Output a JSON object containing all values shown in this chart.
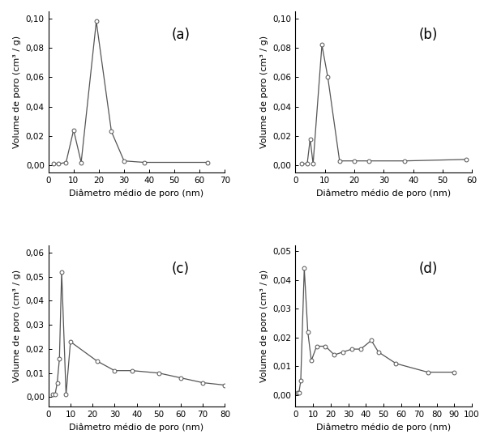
{
  "panel_a": {
    "label": "(a)",
    "x": [
      2,
      4,
      7,
      10,
      13,
      19,
      25,
      30,
      38,
      63
    ],
    "y": [
      0.001,
      0.001,
      0.002,
      0.024,
      0.002,
      0.098,
      0.023,
      0.003,
      0.002,
      0.002
    ],
    "xlim": [
      0,
      70
    ],
    "ylim": [
      -0.005,
      0.105
    ],
    "yticks": [
      0.0,
      0.02,
      0.04,
      0.06,
      0.08,
      0.1
    ],
    "xticks": [
      0,
      10,
      20,
      30,
      40,
      50,
      60,
      70
    ]
  },
  "panel_b": {
    "label": "(b)",
    "x": [
      2,
      4,
      5,
      6,
      9,
      11,
      15,
      20,
      25,
      37,
      58
    ],
    "y": [
      0.001,
      0.001,
      0.018,
      0.001,
      0.082,
      0.06,
      0.003,
      0.003,
      0.003,
      0.003,
      0.004
    ],
    "xlim": [
      0,
      60
    ],
    "ylim": [
      -0.005,
      0.105
    ],
    "yticks": [
      0.0,
      0.02,
      0.04,
      0.06,
      0.08,
      0.1
    ],
    "xticks": [
      0,
      10,
      20,
      30,
      40,
      50,
      60
    ]
  },
  "panel_c": {
    "label": "(c)",
    "x": [
      2,
      3,
      4,
      5,
      6,
      8,
      10,
      22,
      30,
      38,
      50,
      60,
      70,
      80
    ],
    "y": [
      0.001,
      0.001,
      0.006,
      0.016,
      0.052,
      0.001,
      0.023,
      0.015,
      0.011,
      0.011,
      0.01,
      0.008,
      0.006,
      0.005
    ],
    "xlim": [
      0,
      80
    ],
    "ylim": [
      -0.004,
      0.063
    ],
    "yticks": [
      0.0,
      0.01,
      0.02,
      0.03,
      0.04,
      0.05,
      0.06
    ],
    "xticks": [
      0,
      10,
      20,
      30,
      40,
      50,
      60,
      70,
      80
    ]
  },
  "panel_d": {
    "label": "(d)",
    "x": [
      1,
      2,
      3,
      5,
      7,
      9,
      12,
      17,
      22,
      27,
      32,
      37,
      43,
      47,
      57,
      75,
      90
    ],
    "y": [
      0.001,
      0.001,
      0.005,
      0.044,
      0.022,
      0.012,
      0.017,
      0.017,
      0.014,
      0.015,
      0.016,
      0.016,
      0.019,
      0.015,
      0.011,
      0.008,
      0.008
    ],
    "xlim": [
      0,
      100
    ],
    "ylim": [
      -0.004,
      0.052
    ],
    "yticks": [
      0.0,
      0.01,
      0.02,
      0.03,
      0.04,
      0.05
    ],
    "xticks": [
      0,
      10,
      20,
      30,
      40,
      50,
      60,
      70,
      80,
      90,
      100
    ]
  },
  "xlabel": "Diâmetro médio de poro (nm)",
  "ylabel": "Volume de poro (cm³ / g)",
  "line_color": "#555555",
  "marker": "o",
  "markersize": 3.5,
  "markerfacecolor": "white",
  "markeredgecolor": "#555555",
  "linewidth": 0.9,
  "fontsize_label": 8,
  "fontsize_tick": 7.5,
  "fontsize_panel": 12
}
